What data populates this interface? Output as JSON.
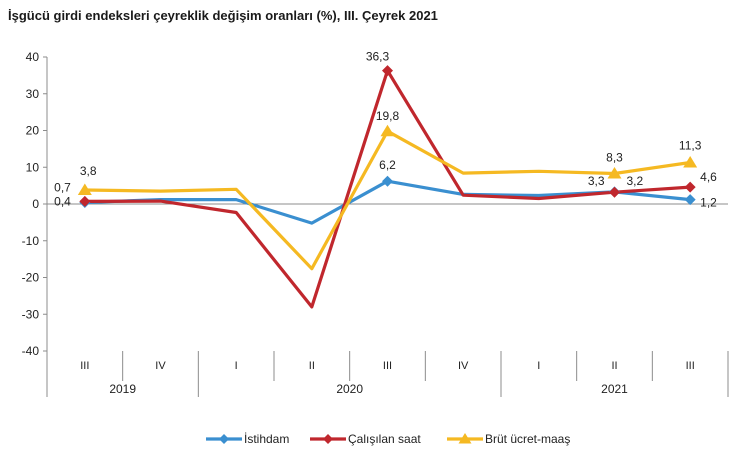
{
  "chart_data": {
    "type": "line",
    "title": "İşgücü girdi endeksleri çeyreklik değişim oranları (%), III. Çeyrek 2021",
    "categories": [
      "III",
      "IV",
      "I",
      "II",
      "III",
      "IV",
      "I",
      "II",
      "III"
    ],
    "years": [
      {
        "label": "2019",
        "span": [
          0,
          1
        ]
      },
      {
        "label": "2020",
        "span": [
          2,
          5
        ]
      },
      {
        "label": "2021",
        "span": [
          6,
          8
        ]
      }
    ],
    "ylim": [
      -40,
      40
    ],
    "yticks": [
      40,
      30,
      20,
      10,
      0,
      -10,
      -20,
      -30,
      -40
    ],
    "series": [
      {
        "name": "İstihdam",
        "color": "#3a8fd0",
        "marker": "diamond",
        "values": [
          0.4,
          1.2,
          1.2,
          -5.2,
          6.2,
          2.6,
          2.3,
          3.3,
          1.2
        ],
        "labels": {
          "0": "0,4",
          "4": "6,2",
          "7": "3,3",
          "8": "1,2"
        }
      },
      {
        "name": "Çalışılan saat",
        "color": "#c0272d",
        "marker": "diamond",
        "values": [
          0.7,
          0.8,
          -2.3,
          -28.0,
          36.3,
          2.4,
          1.5,
          3.2,
          4.6
        ],
        "labels": {
          "0": "0,7",
          "4": "36,3",
          "7": "3,2",
          "8": "4,6"
        }
      },
      {
        "name": "Brüt ücret-maaş",
        "color": "#f5b922",
        "marker": "triangle",
        "values": [
          3.8,
          3.5,
          4.0,
          -17.6,
          19.8,
          8.4,
          8.9,
          8.3,
          11.3
        ],
        "labels": {
          "0": "3,8",
          "4": "19,8",
          "7": "8,3",
          "8": "11,3"
        }
      }
    ]
  }
}
